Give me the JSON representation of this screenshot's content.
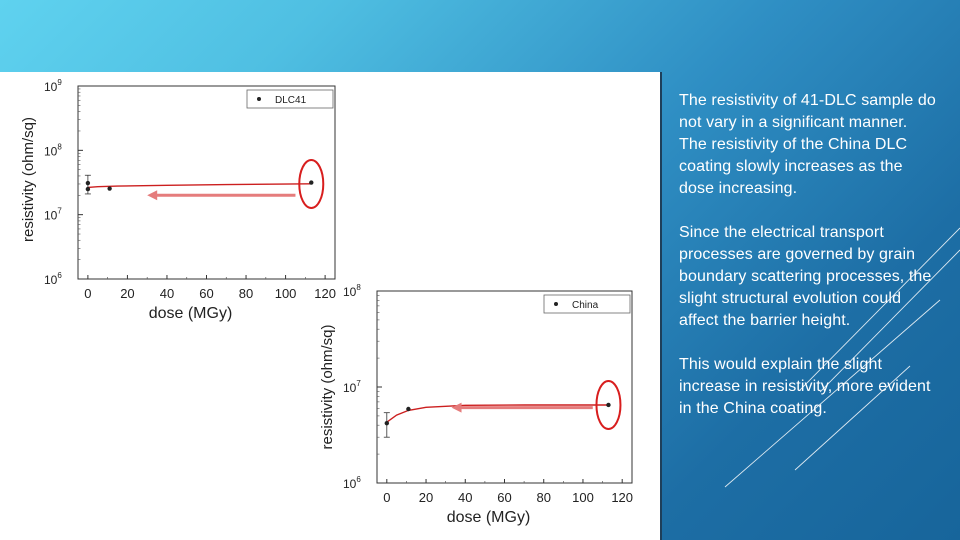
{
  "paragraphs": [
    "The resistivity of 41-DLC sample do\nnot vary in a significant manner.\nThe resistivity of the China DLC\ncoating slowly increases as the\ndose increasing.",
    "Since the electrical transport\nprocesses are governed by grain\nboundary scattering processes, the\nslight structural evolution could\naffect the barrier height.",
    "This would explain the slight\nincrease in resistivity, more evident\nin the China coating."
  ],
  "colors": {
    "fit_line": "#cc1f1f",
    "arrow": "#e57c7c",
    "highlight_ellipse": "#d81e1e",
    "markers": "#222222"
  },
  "chart_data": [
    {
      "type": "scatter",
      "name": "chart-41dlc",
      "xlabel": "dose (MGy)",
      "ylabel": "resistivity (ohm/sq)",
      "xlim": [
        -5,
        125
      ],
      "ylim_log10": [
        6,
        9
      ],
      "y_scale": "log",
      "xticks": [
        0,
        20,
        40,
        60,
        80,
        100,
        120
      ],
      "yticks": [
        {
          "exp": 6,
          "label": "10",
          "sup": "6"
        },
        {
          "exp": 7,
          "label": "10",
          "sup": "7"
        },
        {
          "exp": 8,
          "label": "10",
          "sup": "8"
        },
        {
          "exp": 9,
          "label": "10",
          "sup": "9"
        }
      ],
      "legend": "DLC41",
      "legend_position": "top-right",
      "points": [
        {
          "x": 0,
          "y": 31000000,
          "err_hi": 41000000,
          "err_lo": 21000000
        },
        {
          "x": 0,
          "y": 25000000
        },
        {
          "x": 11,
          "y": 25500000
        },
        {
          "x": 113,
          "y": 31500000
        }
      ],
      "fit": [
        [
          0,
          26500000
        ],
        [
          5,
          27200000
        ],
        [
          15,
          27800000
        ],
        [
          40,
          28600000
        ],
        [
          70,
          29300000
        ],
        [
          113,
          30200000
        ]
      ],
      "highlight": {
        "x": 113,
        "y": 30000000
      },
      "arrow": {
        "from_x": 105,
        "to_x": 30,
        "y": 20000000
      }
    },
    {
      "type": "scatter",
      "name": "chart-china",
      "xlabel": "dose (MGy)",
      "ylabel": "resistivity (ohm/sq)",
      "xlim": [
        -5,
        125
      ],
      "ylim_log10": [
        6,
        8
      ],
      "y_scale": "log",
      "xticks": [
        0,
        20,
        40,
        60,
        80,
        100,
        120
      ],
      "yticks": [
        {
          "exp": 6,
          "label": "10",
          "sup": "6"
        },
        {
          "exp": 7,
          "label": "10",
          "sup": "7"
        },
        {
          "exp": 8,
          "label": "10",
          "sup": "8"
        }
      ],
      "legend": "China",
      "legend_position": "top-right",
      "points": [
        {
          "x": 0,
          "y": 4200000,
          "err_hi": 5400000,
          "err_lo": 3000000
        },
        {
          "x": 11,
          "y": 5900000
        },
        {
          "x": 113,
          "y": 6500000
        }
      ],
      "fit": [
        [
          0,
          4300000
        ],
        [
          5,
          5100000
        ],
        [
          11,
          5700000
        ],
        [
          20,
          6150000
        ],
        [
          40,
          6450000
        ],
        [
          70,
          6500000
        ],
        [
          113,
          6500000
        ]
      ],
      "highlight": {
        "x": 113,
        "y": 6500000
      },
      "arrow": {
        "from_x": 105,
        "to_x": 33,
        "y": 6100000
      }
    }
  ]
}
